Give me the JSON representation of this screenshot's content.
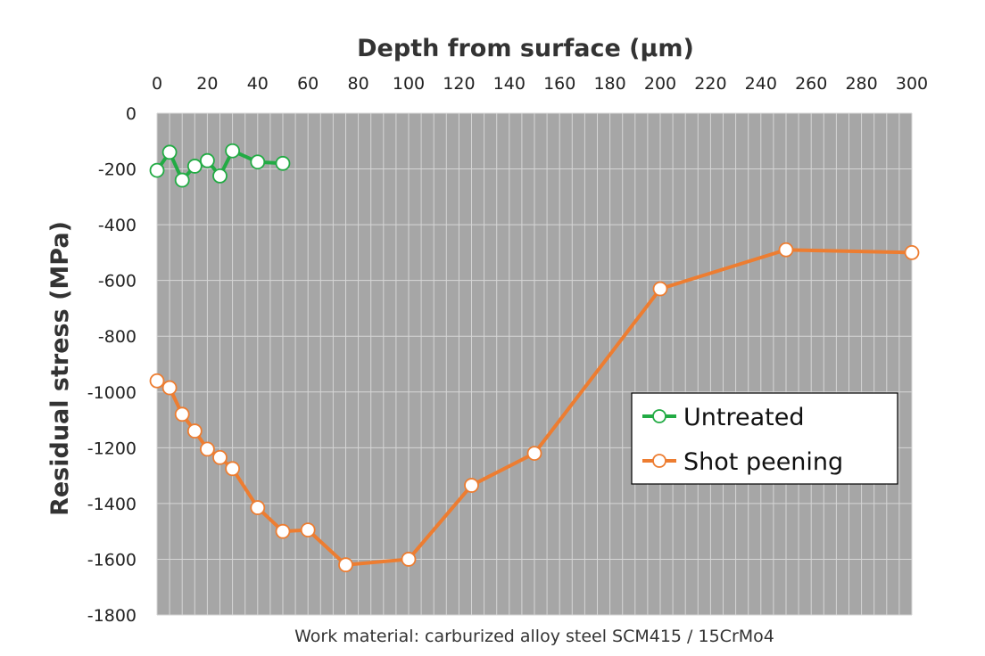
{
  "chart_data": {
    "type": "line",
    "xlabel": "Depth from surface (μm)",
    "ylabel": "Residual stress (MPa)",
    "caption": "Work material: carburized alloy steel SCM415 / 15CrMo4",
    "x_axis_position": "top",
    "xlim": [
      0,
      300
    ],
    "ylim": [
      -1800,
      0
    ],
    "xticks": [
      0,
      20,
      40,
      60,
      80,
      100,
      120,
      140,
      160,
      180,
      200,
      220,
      240,
      260,
      280,
      300
    ],
    "yticks": [
      0,
      -200,
      -400,
      -600,
      -800,
      -1000,
      -1200,
      -1400,
      -1600,
      -1800
    ],
    "grid": true,
    "legend_position": "right",
    "background_color": "#a6a6a6",
    "series": [
      {
        "name": "Untreated",
        "color": "#22ab44",
        "x": [
          0,
          5,
          10,
          15,
          20,
          25,
          30,
          40,
          50
        ],
        "y": [
          -205,
          -140,
          -240,
          -190,
          -170,
          -225,
          -135,
          -175,
          -180
        ]
      },
      {
        "name": "Shot peening",
        "color": "#ed7d31",
        "x": [
          0,
          5,
          10,
          15,
          20,
          25,
          30,
          40,
          50,
          60,
          75,
          100,
          125,
          150,
          200,
          250,
          300
        ],
        "y": [
          -960,
          -985,
          -1080,
          -1140,
          -1205,
          -1235,
          -1275,
          -1415,
          -1500,
          -1495,
          -1620,
          -1600,
          -1335,
          -1220,
          -630,
          -490,
          -500
        ]
      }
    ]
  }
}
